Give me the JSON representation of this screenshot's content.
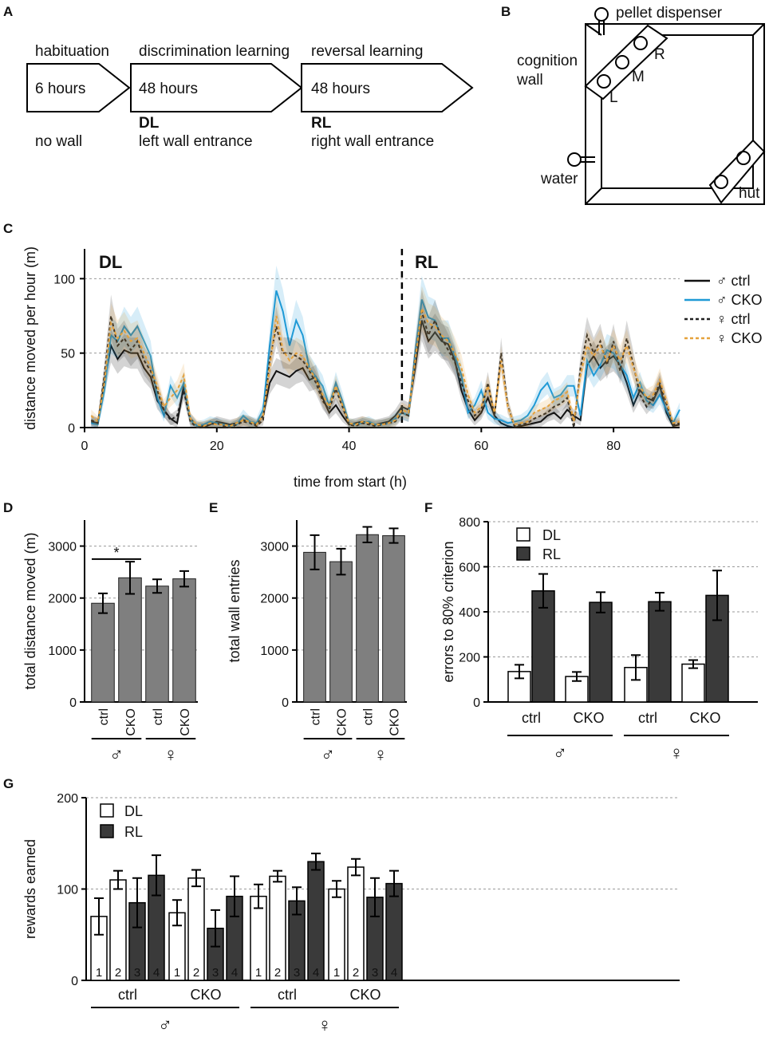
{
  "panel_letters": [
    "A",
    "B",
    "C",
    "D",
    "E",
    "F",
    "G"
  ],
  "panelA": {
    "stages": [
      {
        "title": "habituation",
        "duration": "6 hours",
        "code": "",
        "wall": "no wall"
      },
      {
        "title": "discrimination learning",
        "duration": "48 hours",
        "code": "DL",
        "wall": "left wall entrance"
      },
      {
        "title": "reversal learning",
        "duration": "48 hours",
        "code": "RL",
        "wall": "right wall entrance"
      }
    ]
  },
  "panelB": {
    "labels": {
      "pellet": "pellet dispenser",
      "cognition1": "cognition",
      "cognition2": "wall",
      "water": "water",
      "hut": "hut",
      "L": "L",
      "M": "M",
      "R": "R"
    }
  },
  "chart_data": [
    {
      "id": "C",
      "type": "line",
      "title": "",
      "xlabel": "time from start (h)",
      "ylabel": "distance moved per hour (m)",
      "xlim": [
        0,
        90
      ],
      "ylim": [
        0,
        120
      ],
      "xticks": [
        0,
        20,
        40,
        60,
        80
      ],
      "yticks": [
        0,
        50,
        100
      ],
      "phase_labels": [
        "DL",
        "RL"
      ],
      "phase_boundary": 48,
      "x": [
        1,
        2,
        3,
        4,
        5,
        6,
        7,
        8,
        9,
        10,
        11,
        12,
        13,
        14,
        15,
        16,
        17,
        18,
        19,
        20,
        21,
        22,
        23,
        24,
        25,
        26,
        27,
        28,
        29,
        30,
        31,
        32,
        33,
        34,
        35,
        36,
        37,
        38,
        39,
        40,
        41,
        42,
        43,
        44,
        45,
        46,
        47,
        48,
        49,
        50,
        51,
        52,
        53,
        54,
        55,
        56,
        57,
        58,
        59,
        60,
        61,
        62,
        63,
        64,
        65,
        66,
        67,
        68,
        69,
        70,
        71,
        72,
        73,
        74,
        75,
        76,
        77,
        78,
        79,
        80,
        81,
        82,
        83,
        84,
        85,
        86,
        87,
        88,
        89,
        90
      ],
      "series": [
        {
          "name": "♂ ctrl",
          "color": "#111111",
          "dash": false,
          "values": [
            4,
            3,
            30,
            55,
            46,
            52,
            50,
            50,
            40,
            34,
            18,
            12,
            6,
            3,
            28,
            6,
            1,
            0,
            2,
            4,
            3,
            2,
            3,
            5,
            4,
            2,
            8,
            30,
            38,
            36,
            34,
            38,
            40,
            32,
            34,
            20,
            10,
            15,
            8,
            2,
            3,
            4,
            3,
            2,
            3,
            4,
            8,
            14,
            12,
            40,
            72,
            58,
            64,
            58,
            56,
            45,
            25,
            12,
            5,
            10,
            20,
            8,
            3,
            1,
            0,
            1,
            2,
            3,
            4,
            8,
            10,
            6,
            12,
            8,
            5,
            42,
            48,
            40,
            45,
            48,
            42,
            30,
            15,
            25,
            20,
            18,
            28,
            10,
            1,
            2
          ]
        },
        {
          "name": "♂ CKO",
          "color": "#1f9ad6",
          "dash": false,
          "values": [
            3,
            2,
            25,
            62,
            58,
            68,
            62,
            68,
            58,
            48,
            20,
            8,
            28,
            20,
            30,
            5,
            1,
            2,
            4,
            3,
            2,
            1,
            2,
            8,
            4,
            3,
            12,
            55,
            92,
            78,
            55,
            72,
            62,
            40,
            34,
            28,
            15,
            30,
            18,
            3,
            2,
            3,
            4,
            2,
            2,
            3,
            6,
            10,
            8,
            50,
            86,
            74,
            72,
            60,
            60,
            48,
            35,
            10,
            15,
            25,
            10,
            6,
            5,
            3,
            4,
            5,
            8,
            15,
            25,
            30,
            20,
            22,
            28,
            28,
            8,
            45,
            35,
            42,
            52,
            50,
            42,
            35,
            20,
            30,
            18,
            15,
            22,
            12,
            3,
            12
          ]
        },
        {
          "name": "♀ ctrl",
          "color": "#222222",
          "dash": true,
          "values": [
            5,
            3,
            35,
            75,
            55,
            60,
            52,
            58,
            45,
            38,
            25,
            12,
            5,
            8,
            25,
            4,
            0,
            1,
            2,
            3,
            1,
            0,
            2,
            4,
            3,
            1,
            5,
            45,
            68,
            50,
            50,
            48,
            45,
            38,
            30,
            18,
            12,
            26,
            14,
            2,
            1,
            3,
            2,
            1,
            2,
            3,
            4,
            10,
            8,
            48,
            78,
            62,
            72,
            60,
            52,
            44,
            30,
            18,
            8,
            12,
            30,
            8,
            50,
            15,
            1,
            2,
            3,
            6,
            8,
            10,
            14,
            16,
            20,
            0,
            40,
            62,
            50,
            58,
            42,
            58,
            38,
            60,
            42,
            22,
            14,
            20,
            30,
            16,
            2,
            3
          ]
        },
        {
          "name": "♀ CKO",
          "color": "#e6a23c",
          "dash": true,
          "values": [
            8,
            4,
            30,
            70,
            60,
            65,
            58,
            60,
            50,
            40,
            28,
            14,
            20,
            25,
            35,
            6,
            2,
            1,
            3,
            2,
            2,
            1,
            3,
            5,
            4,
            2,
            8,
            40,
            75,
            52,
            45,
            50,
            48,
            40,
            32,
            22,
            14,
            28,
            15,
            3,
            2,
            4,
            3,
            2,
            2,
            3,
            5,
            12,
            10,
            45,
            80,
            70,
            68,
            62,
            58,
            50,
            40,
            22,
            10,
            14,
            28,
            10,
            45,
            14,
            2,
            3,
            4,
            10,
            12,
            14,
            18,
            20,
            24,
            4,
            35,
            55,
            48,
            55,
            45,
            55,
            45,
            55,
            40,
            28,
            20,
            22,
            32,
            18,
            3,
            4
          ]
        }
      ]
    },
    {
      "id": "D",
      "type": "bar",
      "ylabel": "total distance moved (m)",
      "categories": [
        "ctrl",
        "CKO",
        "ctrl",
        "CKO"
      ],
      "groups": [
        "♂",
        "♀"
      ],
      "values": [
        1900,
        2390,
        2230,
        2370
      ],
      "errors": [
        190,
        310,
        130,
        150
      ],
      "ylim": [
        0,
        3500
      ],
      "yticks": [
        0,
        1000,
        2000,
        3000
      ],
      "significance": "*"
    },
    {
      "id": "E",
      "type": "bar",
      "ylabel": "total wall entries",
      "categories": [
        "ctrl",
        "CKO",
        "ctrl",
        "CKO"
      ],
      "groups": [
        "♂",
        "♀"
      ],
      "values": [
        2880,
        2700,
        3220,
        3200
      ],
      "errors": [
        330,
        250,
        150,
        140
      ],
      "ylim": [
        0,
        3500
      ],
      "yticks": [
        0,
        1000,
        2000,
        3000
      ]
    },
    {
      "id": "F",
      "type": "bar",
      "ylabel": "errors to 80% criterion",
      "categories": [
        "ctrl",
        "CKO",
        "ctrl",
        "CKO"
      ],
      "groups": [
        "♂",
        "♀"
      ],
      "ylim": [
        0,
        800
      ],
      "yticks": [
        0,
        200,
        400,
        600,
        800
      ],
      "legend": [
        "DL",
        "RL"
      ],
      "series": [
        {
          "name": "DL",
          "values": [
            135,
            113,
            153,
            168
          ],
          "errors": [
            30,
            20,
            55,
            18
          ]
        },
        {
          "name": "RL",
          "values": [
            493,
            442,
            445,
            473
          ],
          "errors": [
            75,
            45,
            40,
            110
          ]
        }
      ]
    },
    {
      "id": "G",
      "type": "bar",
      "ylabel": "rewards earned",
      "ylim": [
        0,
        200
      ],
      "yticks": [
        0,
        100,
        200
      ],
      "legend": [
        "DL",
        "RL"
      ],
      "group_labels": [
        "ctrl",
        "CKO",
        "ctrl",
        "CKO"
      ],
      "sex_labels": [
        "♂",
        "♀"
      ],
      "bar_numbers": [
        "1",
        "2",
        "3",
        "4"
      ],
      "groups": [
        {
          "values": [
            70,
            110,
            85,
            115
          ],
          "errors": [
            20,
            10,
            27,
            22
          ],
          "phase": [
            "DL",
            "DL",
            "RL",
            "RL"
          ]
        },
        {
          "values": [
            74,
            112,
            57,
            92
          ],
          "errors": [
            14,
            9,
            20,
            22
          ],
          "phase": [
            "DL",
            "DL",
            "RL",
            "RL"
          ]
        },
        {
          "values": [
            92,
            114,
            87,
            130
          ],
          "errors": [
            13,
            6,
            15,
            9
          ],
          "phase": [
            "DL",
            "DL",
            "RL",
            "RL"
          ]
        },
        {
          "values": [
            100,
            124,
            91,
            106
          ],
          "errors": [
            9,
            9,
            21,
            14
          ],
          "phase": [
            "DL",
            "DL",
            "RL",
            "RL"
          ]
        }
      ]
    }
  ]
}
